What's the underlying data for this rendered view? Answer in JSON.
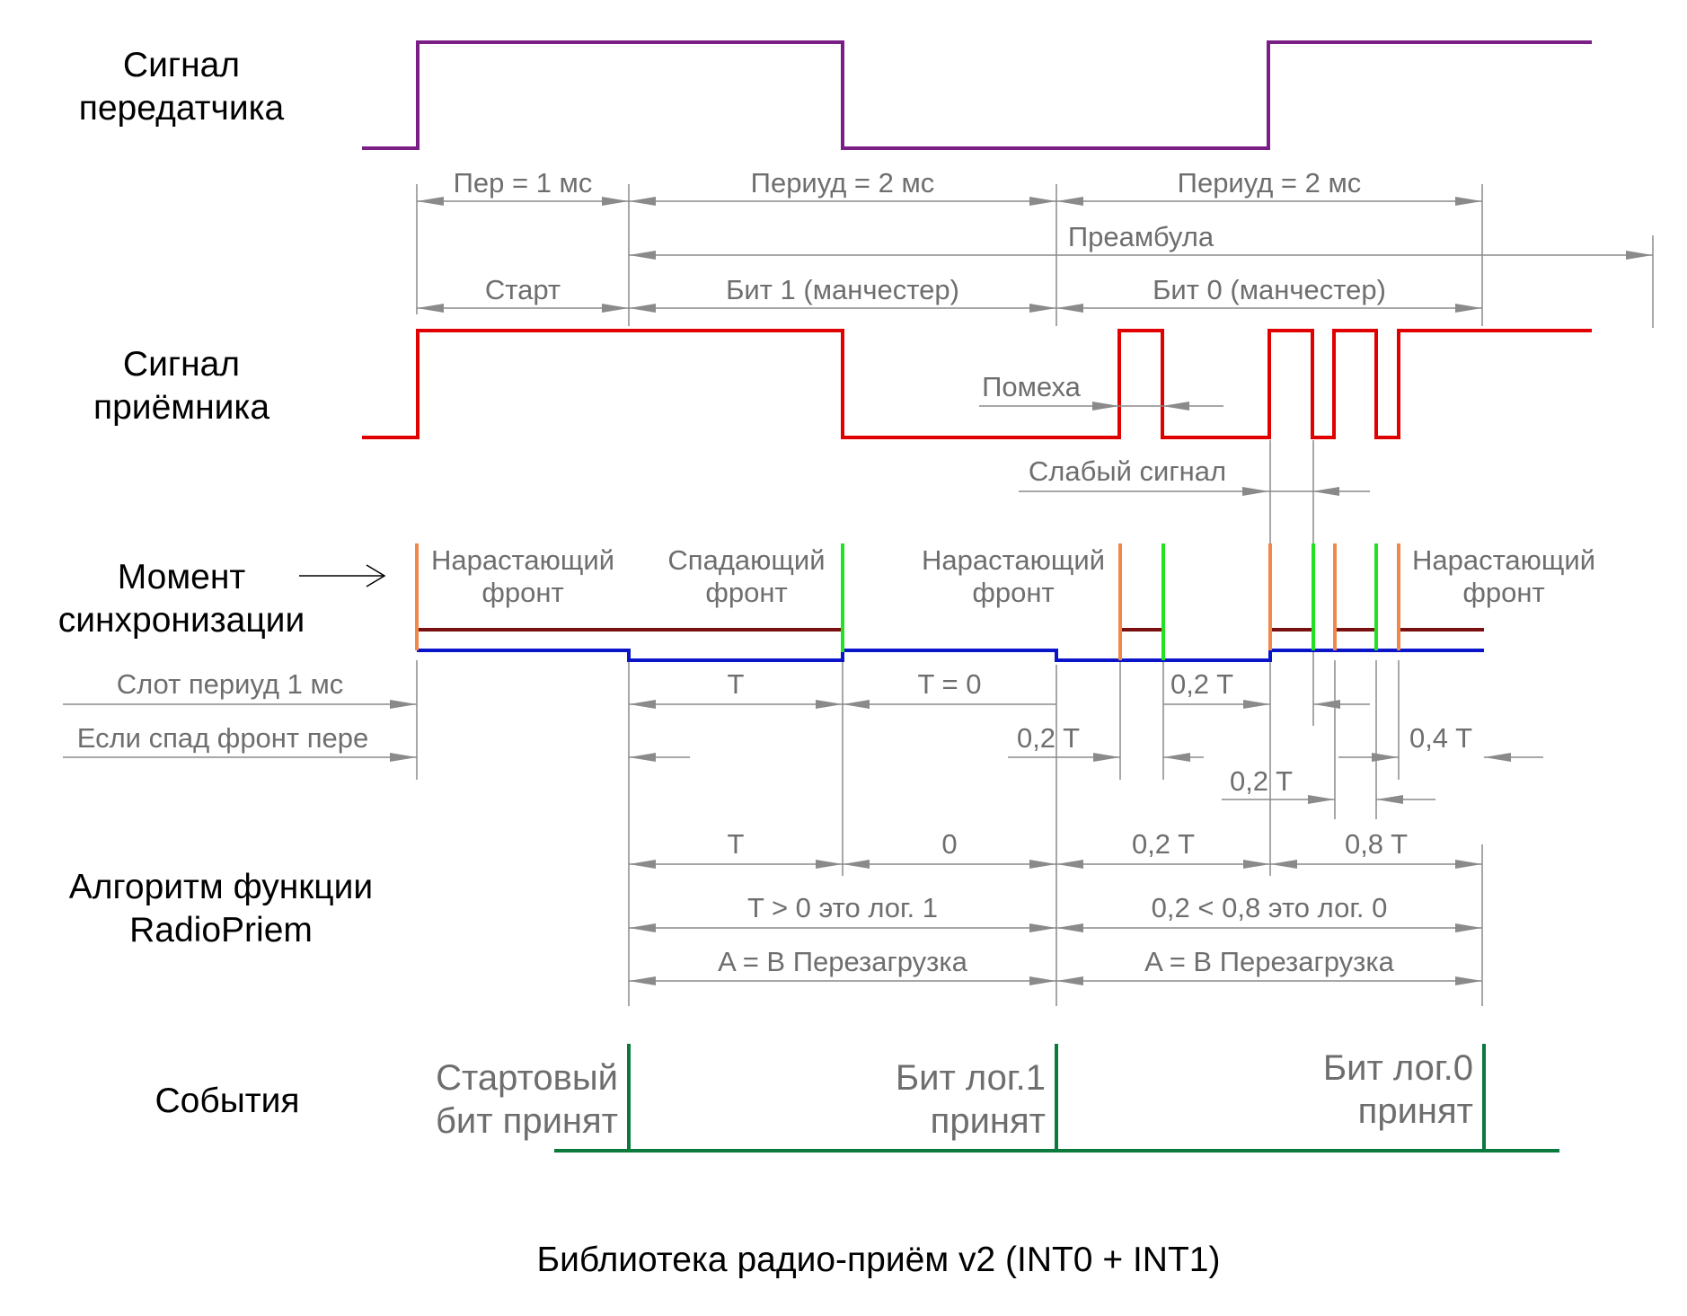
{
  "labels": {
    "tx_1": "Сигнал",
    "tx_2": "передатчика",
    "rx_1": "Сигнал",
    "rx_2": "приёмника",
    "sync_1": "Момент",
    "sync_2": "синхронизации",
    "algo_1": "Алгоритм функции",
    "algo_2": "RadioPriem",
    "events": "События"
  },
  "dims": {
    "per1": "Пер = 1 мс",
    "per2a": "Периуд = 2 мс",
    "per2b": "Периуд = 2 мс",
    "preamble": "Преамбула",
    "start": "Старт",
    "bit1": "Бит 1 (манчестер)",
    "bit0": "Бит 0 (манчестер)",
    "noise": "Помеха",
    "weak": "Слабый сигнал",
    "rise1_1": "Нарастающий",
    "rise1_2": "фронт",
    "fall_1": "Спадающий",
    "fall_2": "фронт",
    "rise2_1": "Нарастающий",
    "rise2_2": "фронт",
    "rise3_1": "Нарастающий",
    "rise3_2": "фронт",
    "slot": "Слот периуд 1 мс",
    "ifspad": "Если спад фронт пере",
    "t_slot": "T",
    "t_zero": "T = 0",
    "t_02a": "0,2 T",
    "t_02b": "0,2  T",
    "t_02c": "0,2  T",
    "t_04": "0,4 T",
    "a_t": "T",
    "a_0": "0",
    "a_02": "0,2 T",
    "a_08": "0,8 T",
    "logic1": "T > 0  это лог. 1",
    "logic0": "0,2 < 0,8 это лог. 0",
    "reset1": "A = B  Перезагрузка",
    "reset0": "A = B  Перезагрузка"
  },
  "events": {
    "start_1": "Стартовый",
    "start_2": "бит принят",
    "bit1_1": "Бит лог.1",
    "bit1_2": "принят",
    "bit0_1": "Бит лог.0",
    "bit0_2": "принят"
  },
  "caption": "Библиотека радио-приём v2  (INT0 + INT1)",
  "colors": {
    "transmitter": "#7b1f86",
    "receiver": "#e00000",
    "rising": "#f0884a",
    "falling": "#22e022",
    "sync_high": "#7a1010",
    "sync_low": "#0a14c8",
    "events": "#0a7a3c",
    "dimension": "#8a8a8a"
  }
}
